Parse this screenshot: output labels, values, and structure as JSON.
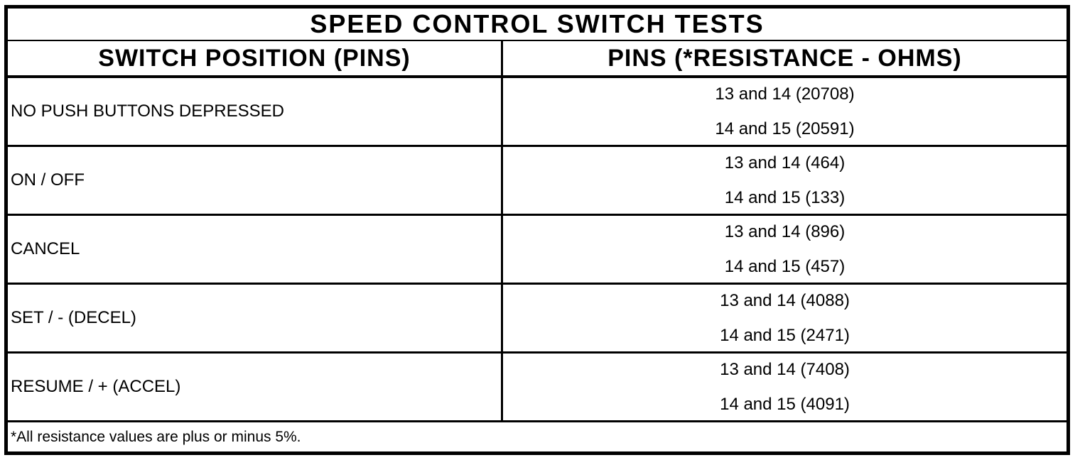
{
  "table": {
    "title": "SPEED CONTROL SWITCH TESTS",
    "columns": {
      "left": "SWITCH POSITION (PINS)",
      "right": "PINS (*RESISTANCE - OHMS)"
    },
    "rows": [
      {
        "position": "NO PUSH BUTTONS DEPRESSED",
        "pins": [
          "13 and 14 (20708)",
          "14 and 15 (20591)"
        ]
      },
      {
        "position": "ON / OFF",
        "pins": [
          "13 and 14 (464)",
          "14 and 15 (133)"
        ]
      },
      {
        "position": "CANCEL",
        "pins": [
          "13 and 14 (896)",
          "14 and 15 (457)"
        ]
      },
      {
        "position": "SET / - (DECEL)",
        "pins": [
          "13 and 14 (4088)",
          "14 and 15 (2471)"
        ]
      },
      {
        "position": "RESUME / + (ACCEL)",
        "pins": [
          "13 and 14 (7408)",
          "14 and 15 (4091)"
        ]
      }
    ],
    "footnote": "*All resistance values are plus or minus 5%.",
    "colors": {
      "border": "#000000",
      "background": "#ffffff",
      "text": "#000000"
    }
  },
  "chart_data": {
    "type": "table",
    "title": "SPEED CONTROL SWITCH TESTS",
    "columns": [
      "SWITCH POSITION (PINS)",
      "PINS (*RESISTANCE - OHMS)"
    ],
    "resistance_ohms": [
      {
        "switch_position": "NO PUSH BUTTONS DEPRESSED",
        "pins_13_14": 20708,
        "pins_14_15": 20591
      },
      {
        "switch_position": "ON / OFF",
        "pins_13_14": 464,
        "pins_14_15": 133
      },
      {
        "switch_position": "CANCEL",
        "pins_13_14": 896,
        "pins_14_15": 457
      },
      {
        "switch_position": "SET / - (DECEL)",
        "pins_13_14": 4088,
        "pins_14_15": 2471
      },
      {
        "switch_position": "RESUME / + (ACCEL)",
        "pins_13_14": 7408,
        "pins_14_15": 4091
      }
    ],
    "tolerance_note": "*All resistance values are plus or minus 5%."
  }
}
